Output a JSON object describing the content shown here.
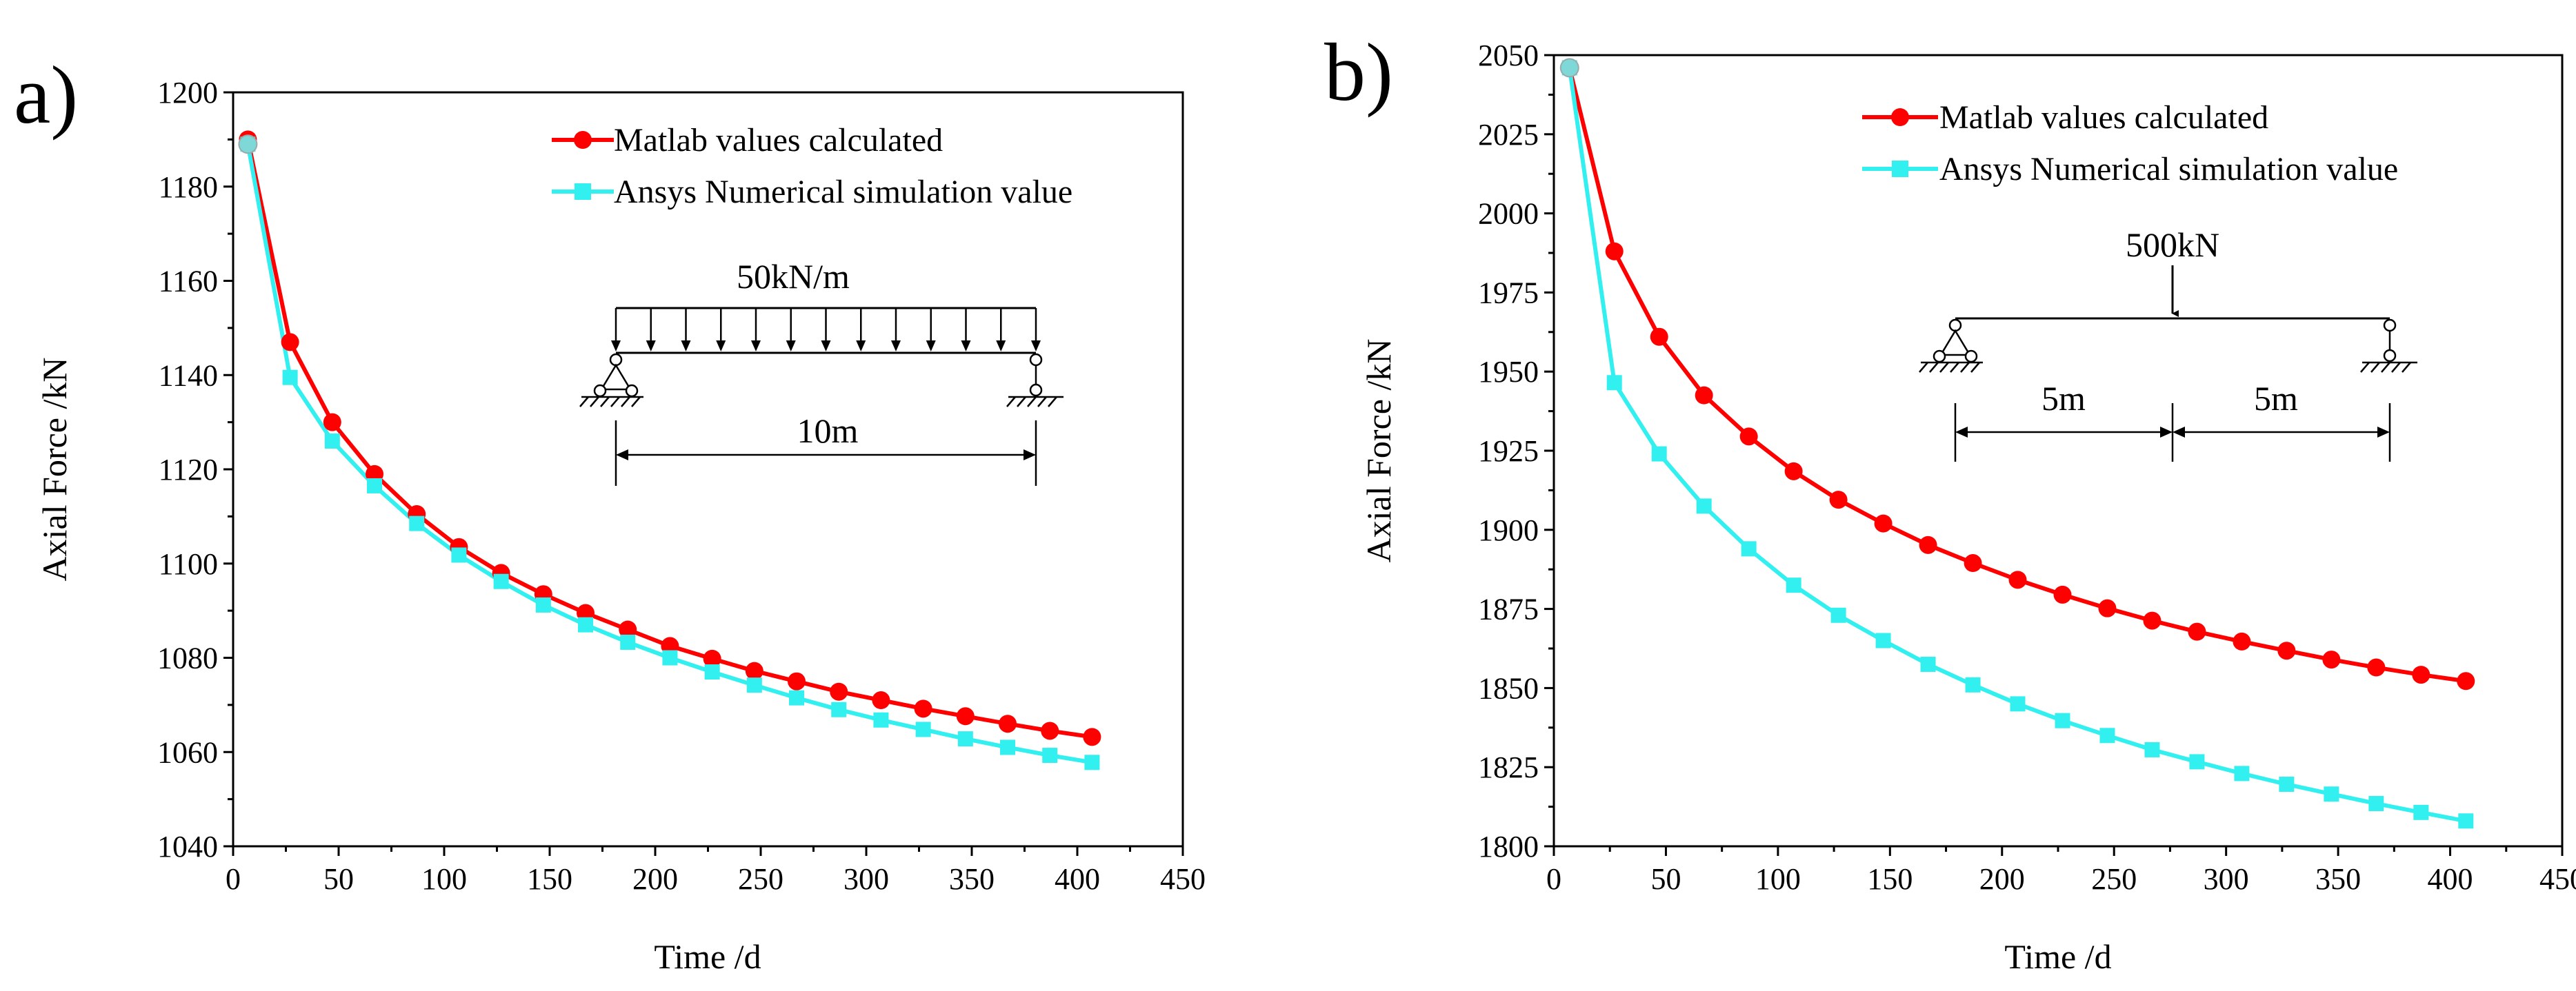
{
  "chart_data": [
    {
      "type": "line",
      "panel_label": "a)",
      "xlabel": "Time /d",
      "ylabel": "Axial Force /kN",
      "xlim": [
        0,
        450
      ],
      "ylim": [
        1040,
        1200
      ],
      "xticks": [
        0,
        50,
        100,
        150,
        200,
        250,
        300,
        350,
        400,
        450
      ],
      "yticks": [
        1040,
        1060,
        1080,
        1100,
        1120,
        1140,
        1160,
        1180,
        1200
      ],
      "x": [
        7,
        27,
        47,
        67,
        87,
        107,
        127,
        147,
        167,
        187,
        207,
        227,
        247,
        267,
        287,
        307,
        327,
        347,
        367,
        387,
        407
      ],
      "series": [
        {
          "name": "Matlab values calculated",
          "color": "#ff0000",
          "marker": "circle",
          "values": [
            1190,
            1147,
            1130,
            1119,
            1110.5,
            1103.5,
            1098,
            1093.5,
            1089.5,
            1086,
            1082.5,
            1079.8,
            1077.2,
            1075,
            1072.8,
            1071,
            1069.2,
            1067.6,
            1066,
            1064.5,
            1063.2
          ]
        },
        {
          "name": "Ansys Numerical simulation value",
          "color": "#33f0f0",
          "marker": "square",
          "values": [
            1189,
            1139.5,
            1126,
            1116.5,
            1108.5,
            1101.8,
            1096.2,
            1091.2,
            1087,
            1083.3,
            1080,
            1077,
            1074.2,
            1071.5,
            1069,
            1066.8,
            1064.8,
            1062.8,
            1061,
            1059.3,
            1057.8
          ]
        }
      ],
      "annotation": {
        "load_label": "50kN/m",
        "span_label": "10m"
      }
    },
    {
      "type": "line",
      "panel_label": "b)",
      "xlabel": "Time /d",
      "ylabel": "Axial Force /kN",
      "xlim": [
        0,
        450
      ],
      "ylim": [
        1800,
        2050
      ],
      "xticks": [
        0,
        50,
        100,
        150,
        200,
        250,
        300,
        350,
        400,
        450
      ],
      "yticks": [
        1800,
        1825,
        1850,
        1875,
        1900,
        1925,
        1950,
        1975,
        2000,
        2025,
        2050
      ],
      "x": [
        7,
        27,
        47,
        67,
        87,
        107,
        127,
        147,
        167,
        187,
        207,
        227,
        247,
        267,
        287,
        307,
        327,
        347,
        367,
        387,
        407
      ],
      "series": [
        {
          "name": "Matlab values calculated",
          "color": "#ff0000",
          "marker": "circle",
          "values": [
            2046,
            1988,
            1961,
            1942.5,
            1929.5,
            1918.5,
            1909.5,
            1902,
            1895.2,
            1889.5,
            1884.2,
            1879.5,
            1875.2,
            1871.3,
            1867.8,
            1864.7,
            1861.8,
            1859,
            1856.5,
            1854.2,
            1852.2
          ]
        },
        {
          "name": "Ansys Numerical simulation value",
          "color": "#33f0f0",
          "marker": "square",
          "values": [
            2046,
            1946.5,
            1924,
            1907.5,
            1894,
            1882.5,
            1873,
            1865,
            1857.5,
            1851,
            1845,
            1839.7,
            1835,
            1830.5,
            1826.7,
            1823,
            1819.6,
            1816.5,
            1813.5,
            1810.7,
            1808
          ]
        }
      ],
      "annotation": {
        "load_label": "500kN",
        "span_left_label": "5m",
        "span_right_label": "5m"
      }
    }
  ]
}
